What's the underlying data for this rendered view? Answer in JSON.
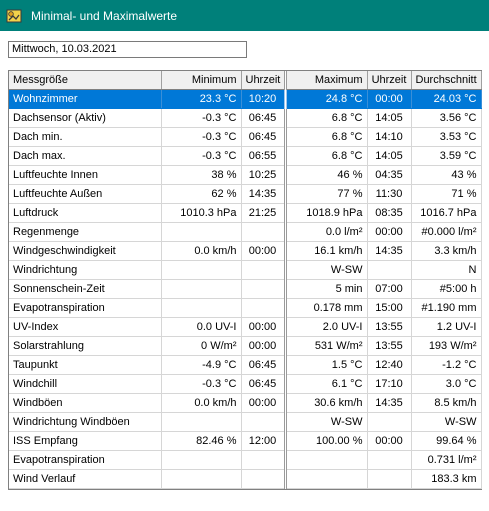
{
  "window": {
    "title": "Minimal- und Maximalwerte",
    "icon": "weather-app-icon",
    "titlebar_color": "#00807a"
  },
  "date_field": {
    "value": "Mittwoch, 10.03.2021"
  },
  "table": {
    "headers": {
      "quantity": "Messgröße",
      "minimum": "Minimum",
      "min_time": "Uhrzeit",
      "maximum": "Maximum",
      "max_time": "Uhrzeit",
      "average": "Durchschnitt"
    },
    "selected_color": "#0078d7",
    "rows": [
      {
        "quantity": "Wohnzimmer",
        "minimum": "23.3 °C",
        "min_time": "10:20",
        "maximum": "24.8 °C",
        "max_time": "00:00",
        "average": "24.03 °C",
        "selected": true
      },
      {
        "quantity": "Dachsensor (Aktiv)",
        "minimum": "-0.3 °C",
        "min_time": "06:45",
        "maximum": "6.8 °C",
        "max_time": "14:05",
        "average": "3.56 °C"
      },
      {
        "quantity": "Dach min.",
        "minimum": "-0.3 °C",
        "min_time": "06:45",
        "maximum": "6.8 °C",
        "max_time": "14:10",
        "average": "3.53 °C"
      },
      {
        "quantity": "Dach max.",
        "minimum": "-0.3 °C",
        "min_time": "06:55",
        "maximum": "6.8 °C",
        "max_time": "14:05",
        "average": "3.59 °C"
      },
      {
        "quantity": "Luftfeuchte Innen",
        "minimum": "38 %",
        "min_time": "10:25",
        "maximum": "46 %",
        "max_time": "04:35",
        "average": "43 %"
      },
      {
        "quantity": "Luftfeuchte Außen",
        "minimum": "62 %",
        "min_time": "14:35",
        "maximum": "77 %",
        "max_time": "11:30",
        "average": "71 %"
      },
      {
        "quantity": "Luftdruck",
        "minimum": "1010.3 hPa",
        "min_time": "21:25",
        "maximum": "1018.9 hPa",
        "max_time": "08:35",
        "average": "1016.7 hPa"
      },
      {
        "quantity": "Regenmenge",
        "minimum": "",
        "min_time": "",
        "maximum": "0.0 l/m²",
        "max_time": "00:00",
        "average": "#0.000 l/m²"
      },
      {
        "quantity": "Windgeschwindigkeit",
        "minimum": "0.0 km/h",
        "min_time": "00:00",
        "maximum": "16.1 km/h",
        "max_time": "14:35",
        "average": "3.3 km/h"
      },
      {
        "quantity": "Windrichtung",
        "minimum": "",
        "min_time": "",
        "maximum": "W-SW",
        "max_time": "",
        "average": "N"
      },
      {
        "quantity": "Sonnenschein-Zeit",
        "minimum": "",
        "min_time": "",
        "maximum": "5 min",
        "max_time": "07:00",
        "average": "#5:00 h"
      },
      {
        "quantity": "Evapotranspiration",
        "minimum": "",
        "min_time": "",
        "maximum": "0.178 mm",
        "max_time": "15:00",
        "average": "#1.190 mm"
      },
      {
        "quantity": "UV-Index",
        "minimum": "0.0 UV-I",
        "min_time": "00:00",
        "maximum": "2.0 UV-I",
        "max_time": "13:55",
        "average": "1.2 UV-I"
      },
      {
        "quantity": "Solarstrahlung",
        "minimum": "0 W/m²",
        "min_time": "00:00",
        "maximum": "531 W/m²",
        "max_time": "13:55",
        "average": "193 W/m²"
      },
      {
        "quantity": "Taupunkt",
        "minimum": "-4.9 °C",
        "min_time": "06:45",
        "maximum": "1.5 °C",
        "max_time": "12:40",
        "average": "-1.2 °C"
      },
      {
        "quantity": "Windchill",
        "minimum": "-0.3 °C",
        "min_time": "06:45",
        "maximum": "6.1 °C",
        "max_time": "17:10",
        "average": "3.0 °C"
      },
      {
        "quantity": "Windböen",
        "minimum": "0.0 km/h",
        "min_time": "00:00",
        "maximum": "30.6 km/h",
        "max_time": "14:35",
        "average": "8.5 km/h"
      },
      {
        "quantity": "Windrichtung Windböen",
        "minimum": "",
        "min_time": "",
        "maximum": "W-SW",
        "max_time": "",
        "average": "W-SW"
      },
      {
        "quantity": "ISS Empfang",
        "minimum": "82.46 %",
        "min_time": "12:00",
        "maximum": "100.00 %",
        "max_time": "00:00",
        "average": "99.64 %"
      },
      {
        "quantity": "Evapotranspiration",
        "minimum": "",
        "min_time": "",
        "maximum": "",
        "max_time": "",
        "average": "0.731 l/m²"
      },
      {
        "quantity": "Wind Verlauf",
        "minimum": "",
        "min_time": "",
        "maximum": "",
        "max_time": "",
        "average": "183.3 km"
      }
    ]
  }
}
